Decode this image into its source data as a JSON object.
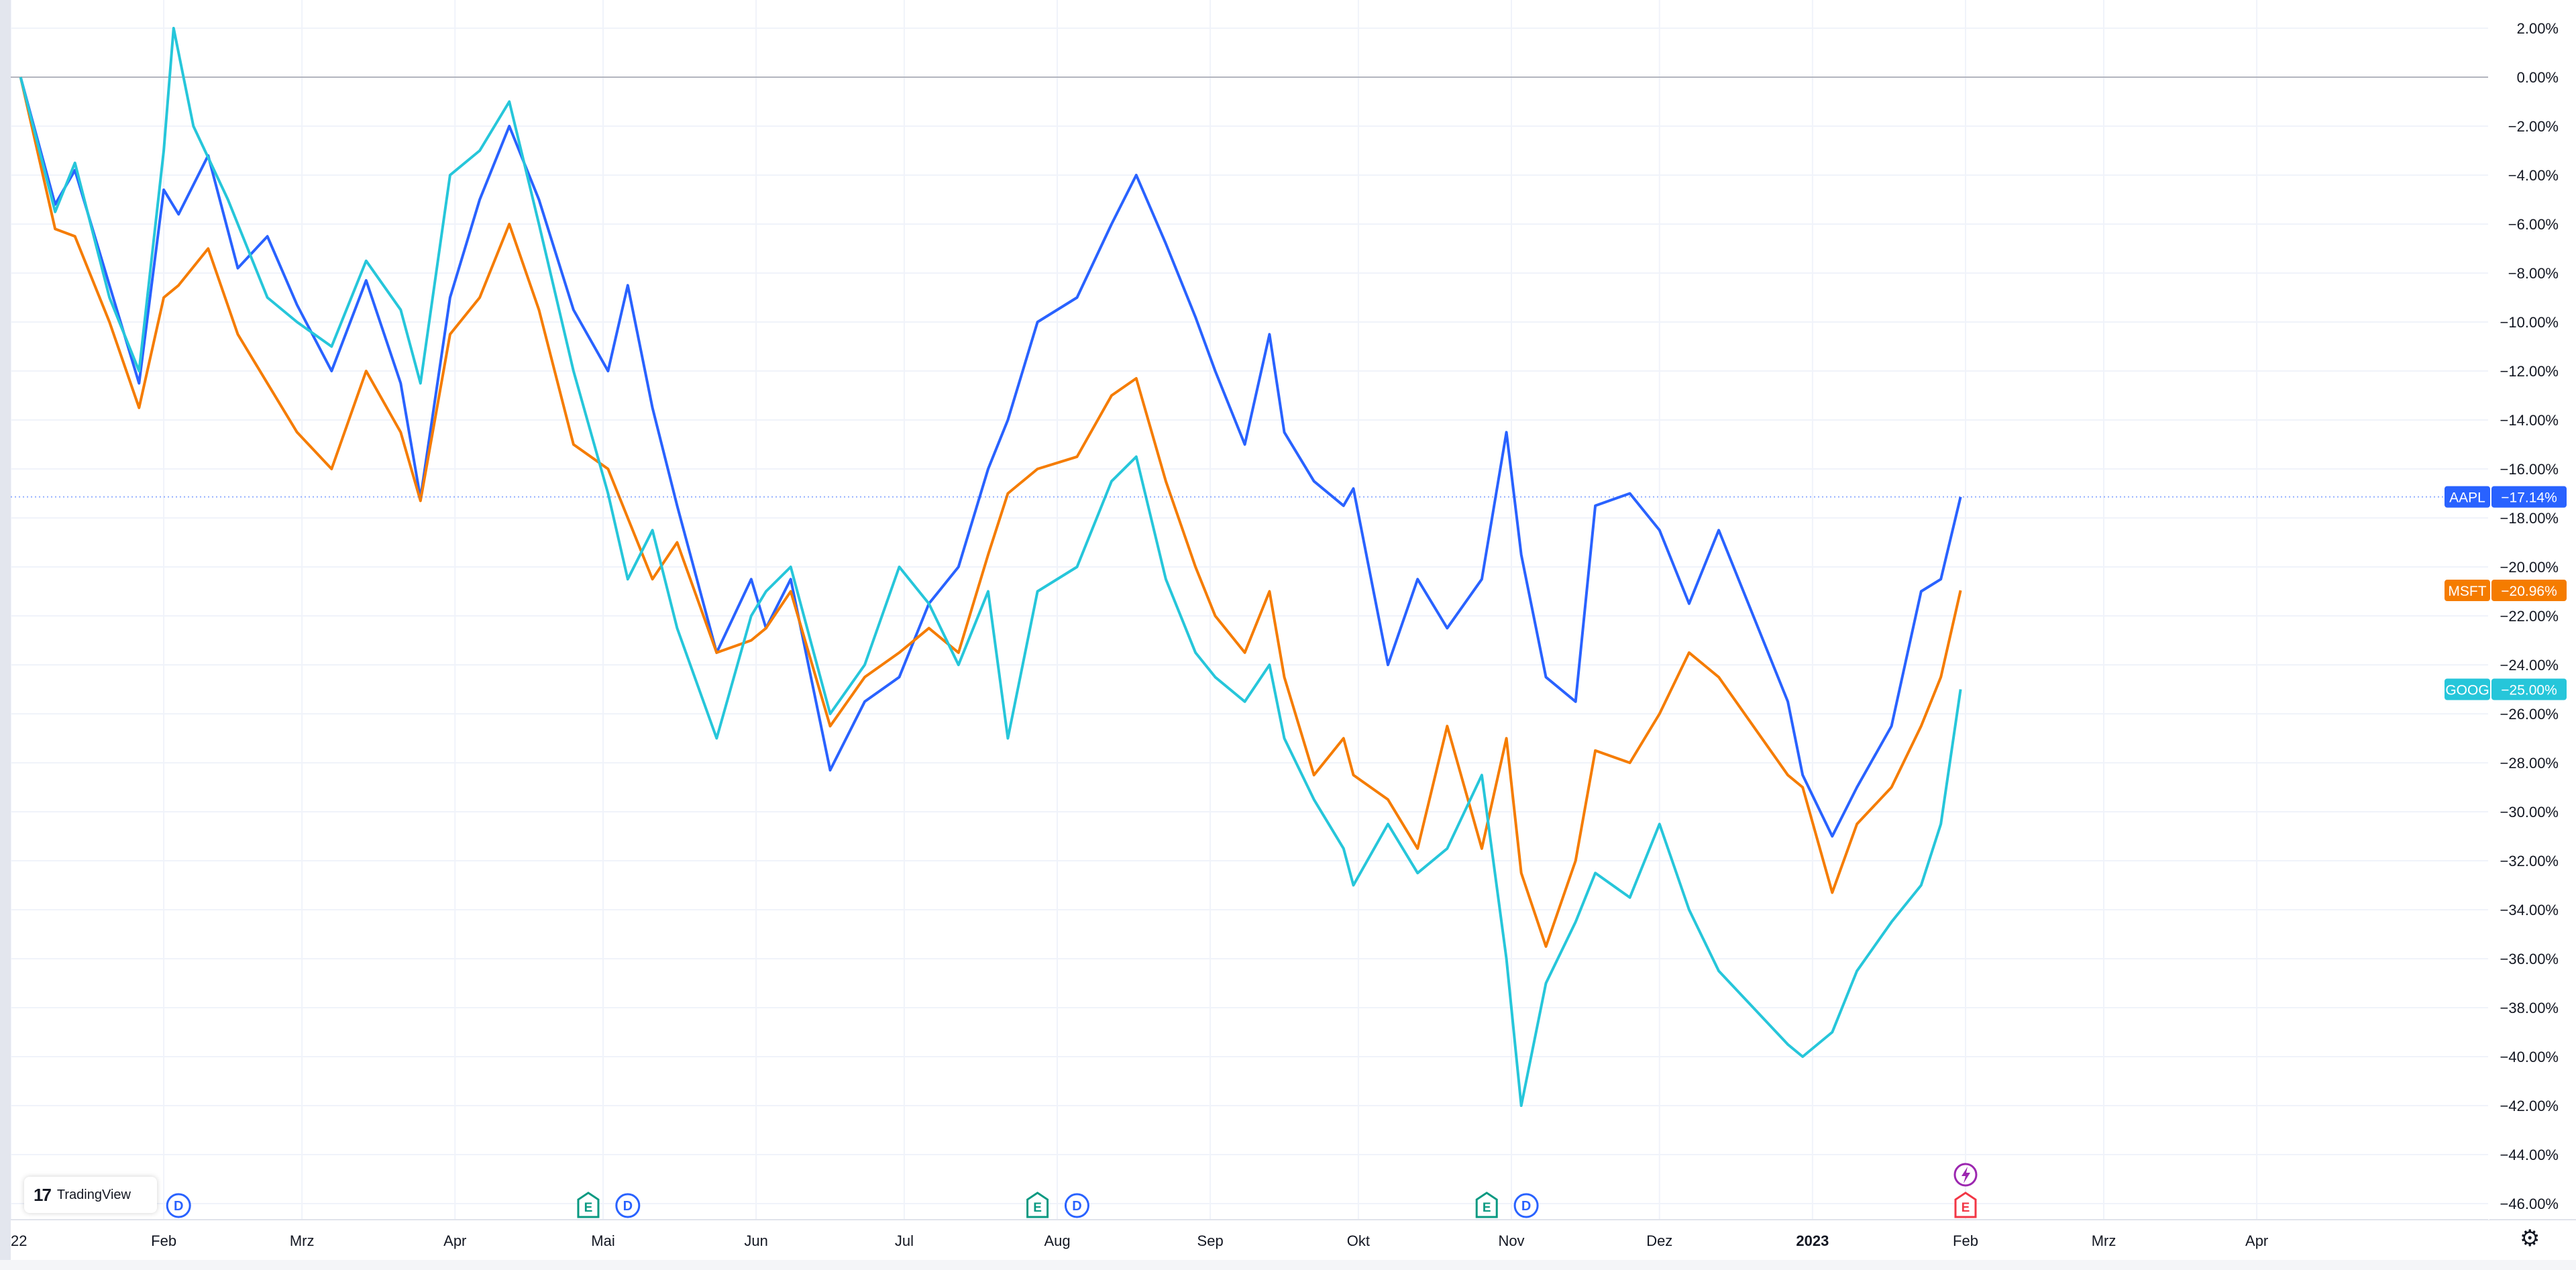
{
  "branding": {
    "logo_text": "TradingView"
  },
  "chart_data": {
    "type": "line",
    "y_axis_unit": "%",
    "y_ticks": [
      2,
      0,
      -2,
      -4,
      -6,
      -8,
      -10,
      -12,
      -14,
      -16,
      -18,
      -20,
      -22,
      -24,
      -26,
      -28,
      -30,
      -32,
      -34,
      -36,
      -38,
      -40,
      -42,
      -44,
      -46
    ],
    "y_tick_labels": [
      "2.00%",
      "0.00%",
      "−2.00%",
      "−4.00%",
      "−6.00%",
      "−8.00%",
      "−10.00%",
      "−12.00%",
      "−14.00%",
      "−16.00%",
      "−18.00%",
      "−20.00%",
      "−22.00%",
      "−24.00%",
      "−26.00%",
      "−28.00%",
      "−30.00%",
      "−32.00%",
      "−34.00%",
      "−36.00%",
      "−38.00%",
      "−40.00%",
      "−42.00%",
      "−44.00%",
      "−46.00%"
    ],
    "ylim": [
      -47,
      2.5
    ],
    "x_ticks": [
      {
        "label": "22",
        "date": "2022-01-01"
      },
      {
        "label": "Feb",
        "date": "2022-02-01"
      },
      {
        "label": "Mrz",
        "date": "2022-03-01"
      },
      {
        "label": "Apr",
        "date": "2022-04-01"
      },
      {
        "label": "Mai",
        "date": "2022-05-01"
      },
      {
        "label": "Jun",
        "date": "2022-06-01"
      },
      {
        "label": "Jul",
        "date": "2022-07-01"
      },
      {
        "label": "Aug",
        "date": "2022-08-01"
      },
      {
        "label": "Sep",
        "date": "2022-09-01"
      },
      {
        "label": "Okt",
        "date": "2022-10-01"
      },
      {
        "label": "Nov",
        "date": "2022-11-01"
      },
      {
        "label": "Dez",
        "date": "2022-12-01"
      },
      {
        "label": "2023",
        "date": "2023-01-01",
        "bold": true
      },
      {
        "label": "Feb",
        "date": "2023-02-01"
      },
      {
        "label": "Mrz",
        "date": "2023-03-01"
      },
      {
        "label": "Apr",
        "date": "2023-04-01"
      }
    ],
    "x_range": [
      "2022-01-01",
      "2023-05-18"
    ],
    "baseline": 0,
    "grid": true,
    "series": [
      {
        "name": "AAPL",
        "color": "#2962ff",
        "last_value": -17.14,
        "label": "−17.14%",
        "points": [
          [
            "2022-01-03",
            0
          ],
          [
            "2022-01-10",
            -5.2
          ],
          [
            "2022-01-14",
            -3.8
          ],
          [
            "2022-01-21",
            -8.5
          ],
          [
            "2022-01-27",
            -12.5
          ],
          [
            "2022-02-01",
            -4.6
          ],
          [
            "2022-02-04",
            -5.6
          ],
          [
            "2022-02-10",
            -3.2
          ],
          [
            "2022-02-16",
            -7.8
          ],
          [
            "2022-02-22",
            -6.5
          ],
          [
            "2022-02-28",
            -9.3
          ],
          [
            "2022-03-07",
            -12.0
          ],
          [
            "2022-03-14",
            -8.3
          ],
          [
            "2022-03-21",
            -12.5
          ],
          [
            "2022-03-25",
            -17.2
          ],
          [
            "2022-03-31",
            -9.0
          ],
          [
            "2022-04-06",
            -5.0
          ],
          [
            "2022-04-12",
            -2.0
          ],
          [
            "2022-04-18",
            -5.0
          ],
          [
            "2022-04-25",
            -9.5
          ],
          [
            "2022-05-02",
            -12.0
          ],
          [
            "2022-05-06",
            -8.5
          ],
          [
            "2022-05-11",
            -13.5
          ],
          [
            "2022-05-16",
            -17.5
          ],
          [
            "2022-05-24",
            -23.5
          ],
          [
            "2022-05-31",
            -20.5
          ],
          [
            "2022-06-03",
            -22.5
          ],
          [
            "2022-06-08",
            -20.5
          ],
          [
            "2022-06-16",
            -28.3
          ],
          [
            "2022-06-23",
            -25.5
          ],
          [
            "2022-06-30",
            -24.5
          ],
          [
            "2022-07-06",
            -21.5
          ],
          [
            "2022-07-12",
            -20.0
          ],
          [
            "2022-07-18",
            -16.0
          ],
          [
            "2022-07-22",
            -14.0
          ],
          [
            "2022-07-28",
            -10.0
          ],
          [
            "2022-08-05",
            -9.0
          ],
          [
            "2022-08-12",
            -6.0
          ],
          [
            "2022-08-17",
            -4.0
          ],
          [
            "2022-08-23",
            -6.8
          ],
          [
            "2022-08-29",
            -9.8
          ],
          [
            "2022-09-02",
            -12.0
          ],
          [
            "2022-09-08",
            -15.0
          ],
          [
            "2022-09-13",
            -10.5
          ],
          [
            "2022-09-16",
            -14.5
          ],
          [
            "2022-09-22",
            -16.5
          ],
          [
            "2022-09-28",
            -17.5
          ],
          [
            "2022-09-30",
            -16.8
          ],
          [
            "2022-10-07",
            -24.0
          ],
          [
            "2022-10-13",
            -20.5
          ],
          [
            "2022-10-19",
            -22.5
          ],
          [
            "2022-10-26",
            -20.5
          ],
          [
            "2022-10-31",
            -14.5
          ],
          [
            "2022-11-03",
            -19.5
          ],
          [
            "2022-11-08",
            -24.5
          ],
          [
            "2022-11-14",
            -25.5
          ],
          [
            "2022-11-18",
            -17.5
          ],
          [
            "2022-11-25",
            -17.0
          ],
          [
            "2022-12-01",
            -18.5
          ],
          [
            "2022-12-07",
            -21.5
          ],
          [
            "2022-12-13",
            -18.5
          ],
          [
            "2022-12-20",
            -22.0
          ],
          [
            "2022-12-27",
            -25.5
          ],
          [
            "2022-12-30",
            -28.5
          ],
          [
            "2023-01-05",
            -31.0
          ],
          [
            "2023-01-10",
            -29.0
          ],
          [
            "2023-01-17",
            -26.5
          ],
          [
            "2023-01-23",
            -21.0
          ],
          [
            "2023-01-27",
            -20.5
          ],
          [
            "2023-01-31",
            -17.14
          ]
        ]
      },
      {
        "name": "MSFT",
        "color": "#f57c00",
        "last_value": -20.96,
        "label": "−20.96%",
        "points": [
          [
            "2022-01-03",
            0
          ],
          [
            "2022-01-10",
            -6.2
          ],
          [
            "2022-01-14",
            -6.5
          ],
          [
            "2022-01-21",
            -10.0
          ],
          [
            "2022-01-27",
            -13.5
          ],
          [
            "2022-02-01",
            -9.0
          ],
          [
            "2022-02-04",
            -8.5
          ],
          [
            "2022-02-10",
            -7.0
          ],
          [
            "2022-02-16",
            -10.5
          ],
          [
            "2022-02-22",
            -12.5
          ],
          [
            "2022-02-28",
            -14.5
          ],
          [
            "2022-03-07",
            -16.0
          ],
          [
            "2022-03-14",
            -12.0
          ],
          [
            "2022-03-21",
            -14.5
          ],
          [
            "2022-03-25",
            -17.3
          ],
          [
            "2022-03-31",
            -10.5
          ],
          [
            "2022-04-06",
            -9.0
          ],
          [
            "2022-04-12",
            -6.0
          ],
          [
            "2022-04-18",
            -9.5
          ],
          [
            "2022-04-25",
            -15.0
          ],
          [
            "2022-05-02",
            -16.0
          ],
          [
            "2022-05-06",
            -18.0
          ],
          [
            "2022-05-11",
            -20.5
          ],
          [
            "2022-05-16",
            -19.0
          ],
          [
            "2022-05-24",
            -23.5
          ],
          [
            "2022-05-31",
            -23.0
          ],
          [
            "2022-06-03",
            -22.5
          ],
          [
            "2022-06-08",
            -21.0
          ],
          [
            "2022-06-16",
            -26.5
          ],
          [
            "2022-06-23",
            -24.5
          ],
          [
            "2022-06-30",
            -23.5
          ],
          [
            "2022-07-06",
            -22.5
          ],
          [
            "2022-07-12",
            -23.5
          ],
          [
            "2022-07-18",
            -19.5
          ],
          [
            "2022-07-22",
            -17.0
          ],
          [
            "2022-07-28",
            -16.0
          ],
          [
            "2022-08-05",
            -15.5
          ],
          [
            "2022-08-12",
            -13.0
          ],
          [
            "2022-08-17",
            -12.3
          ],
          [
            "2022-08-23",
            -16.5
          ],
          [
            "2022-08-29",
            -20.0
          ],
          [
            "2022-09-02",
            -22.0
          ],
          [
            "2022-09-08",
            -23.5
          ],
          [
            "2022-09-13",
            -21.0
          ],
          [
            "2022-09-16",
            -24.5
          ],
          [
            "2022-09-22",
            -28.5
          ],
          [
            "2022-09-28",
            -27.0
          ],
          [
            "2022-09-30",
            -28.5
          ],
          [
            "2022-10-07",
            -29.5
          ],
          [
            "2022-10-13",
            -31.5
          ],
          [
            "2022-10-19",
            -26.5
          ],
          [
            "2022-10-26",
            -31.5
          ],
          [
            "2022-10-31",
            -27.0
          ],
          [
            "2022-11-03",
            -32.5
          ],
          [
            "2022-11-08",
            -35.5
          ],
          [
            "2022-11-14",
            -32.0
          ],
          [
            "2022-11-18",
            -27.5
          ],
          [
            "2022-11-25",
            -28.0
          ],
          [
            "2022-12-01",
            -26.0
          ],
          [
            "2022-12-07",
            -23.5
          ],
          [
            "2022-12-13",
            -24.5
          ],
          [
            "2022-12-20",
            -26.5
          ],
          [
            "2022-12-27",
            -28.5
          ],
          [
            "2022-12-30",
            -29.0
          ],
          [
            "2023-01-05",
            -33.3
          ],
          [
            "2023-01-10",
            -30.5
          ],
          [
            "2023-01-17",
            -29.0
          ],
          [
            "2023-01-23",
            -26.5
          ],
          [
            "2023-01-27",
            -24.5
          ],
          [
            "2023-01-31",
            -20.96
          ]
        ]
      },
      {
        "name": "GOOG",
        "color": "#26c6da",
        "last_value": -25.0,
        "label": "−25.00%",
        "points": [
          [
            "2022-01-03",
            0
          ],
          [
            "2022-01-10",
            -5.5
          ],
          [
            "2022-01-14",
            -3.5
          ],
          [
            "2022-01-21",
            -9.0
          ],
          [
            "2022-01-27",
            -12.0
          ],
          [
            "2022-02-01",
            -3.0
          ],
          [
            "2022-02-03",
            2.0
          ],
          [
            "2022-02-07",
            -2.0
          ],
          [
            "2022-02-14",
            -5.0
          ],
          [
            "2022-02-22",
            -9.0
          ],
          [
            "2022-02-28",
            -10.0
          ],
          [
            "2022-03-07",
            -11.0
          ],
          [
            "2022-03-14",
            -7.5
          ],
          [
            "2022-03-21",
            -9.5
          ],
          [
            "2022-03-25",
            -12.5
          ],
          [
            "2022-03-31",
            -4.0
          ],
          [
            "2022-04-06",
            -3.0
          ],
          [
            "2022-04-12",
            -1.0
          ],
          [
            "2022-04-18",
            -6.0
          ],
          [
            "2022-04-25",
            -12.0
          ],
          [
            "2022-05-02",
            -17.0
          ],
          [
            "2022-05-06",
            -20.5
          ],
          [
            "2022-05-11",
            -18.5
          ],
          [
            "2022-05-16",
            -22.5
          ],
          [
            "2022-05-24",
            -27.0
          ],
          [
            "2022-05-31",
            -22.0
          ],
          [
            "2022-06-03",
            -21.0
          ],
          [
            "2022-06-08",
            -20.0
          ],
          [
            "2022-06-16",
            -26.0
          ],
          [
            "2022-06-23",
            -24.0
          ],
          [
            "2022-06-30",
            -20.0
          ],
          [
            "2022-07-06",
            -21.5
          ],
          [
            "2022-07-12",
            -24.0
          ],
          [
            "2022-07-18",
            -21.0
          ],
          [
            "2022-07-22",
            -27.0
          ],
          [
            "2022-07-28",
            -21.0
          ],
          [
            "2022-08-05",
            -20.0
          ],
          [
            "2022-08-12",
            -16.5
          ],
          [
            "2022-08-17",
            -15.5
          ],
          [
            "2022-08-23",
            -20.5
          ],
          [
            "2022-08-29",
            -23.5
          ],
          [
            "2022-09-02",
            -24.5
          ],
          [
            "2022-09-08",
            -25.5
          ],
          [
            "2022-09-13",
            -24.0
          ],
          [
            "2022-09-16",
            -27.0
          ],
          [
            "2022-09-22",
            -29.5
          ],
          [
            "2022-09-28",
            -31.5
          ],
          [
            "2022-09-30",
            -33.0
          ],
          [
            "2022-10-07",
            -30.5
          ],
          [
            "2022-10-13",
            -32.5
          ],
          [
            "2022-10-19",
            -31.5
          ],
          [
            "2022-10-26",
            -28.5
          ],
          [
            "2022-10-31",
            -36.0
          ],
          [
            "2022-11-03",
            -42.0
          ],
          [
            "2022-11-08",
            -37.0
          ],
          [
            "2022-11-14",
            -34.5
          ],
          [
            "2022-11-18",
            -32.5
          ],
          [
            "2022-11-25",
            -33.5
          ],
          [
            "2022-12-01",
            -30.5
          ],
          [
            "2022-12-07",
            -34.0
          ],
          [
            "2022-12-13",
            -36.5
          ],
          [
            "2022-12-20",
            -38.0
          ],
          [
            "2022-12-27",
            -39.5
          ],
          [
            "2022-12-30",
            -40.0
          ],
          [
            "2023-01-05",
            -39.0
          ],
          [
            "2023-01-10",
            -36.5
          ],
          [
            "2023-01-17",
            -34.5
          ],
          [
            "2023-01-23",
            -33.0
          ],
          [
            "2023-01-27",
            -30.5
          ],
          [
            "2023-01-31",
            -25.0
          ]
        ]
      }
    ],
    "events": [
      {
        "type": "D",
        "date": "2022-02-04"
      },
      {
        "type": "E",
        "date": "2022-04-28"
      },
      {
        "type": "D",
        "date": "2022-05-06"
      },
      {
        "type": "E",
        "date": "2022-07-28"
      },
      {
        "type": "D",
        "date": "2022-08-05"
      },
      {
        "type": "E",
        "date": "2022-10-27"
      },
      {
        "type": "D",
        "date": "2022-11-04"
      },
      {
        "type": "E",
        "date": "2023-02-01"
      },
      {
        "type": "lightning",
        "date": "2023-02-01"
      }
    ]
  }
}
